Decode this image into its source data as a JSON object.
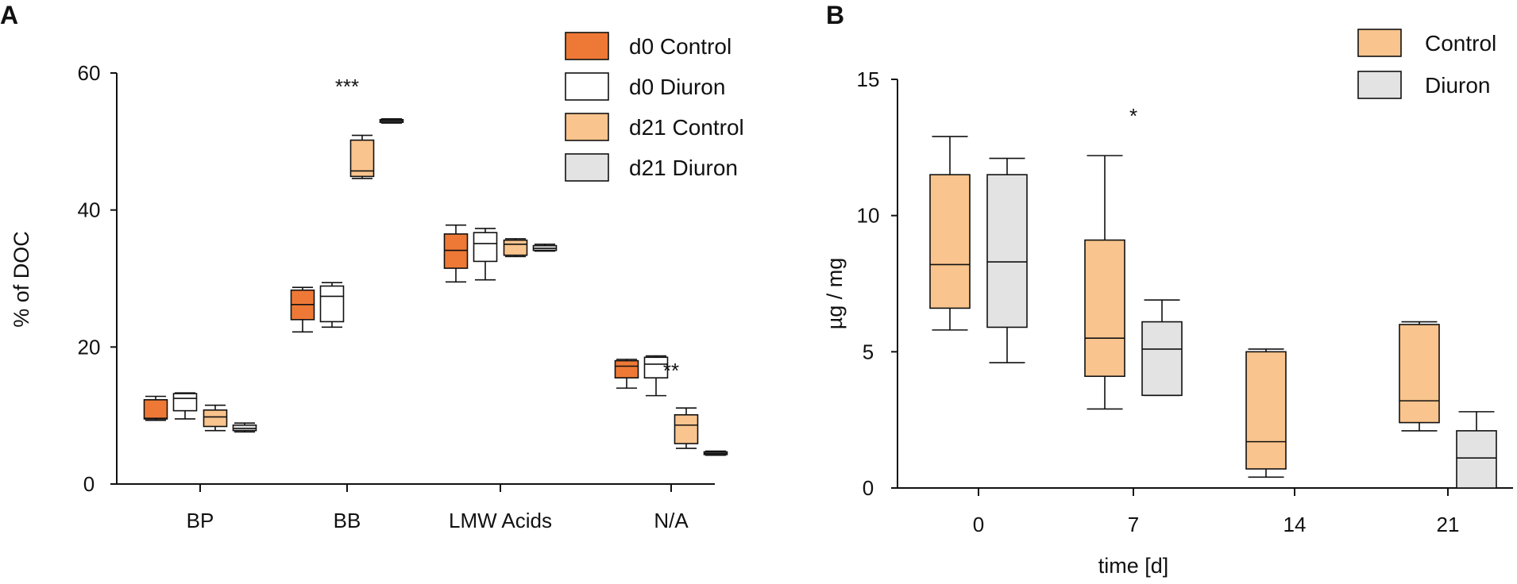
{
  "chart_data": [
    {
      "panel": "A",
      "type": "boxplot",
      "ylabel": "% of DOC",
      "xlabel": "",
      "ylim": [
        0,
        60
      ],
      "yticks": [
        0,
        20,
        40,
        60
      ],
      "categories": [
        "BP",
        "BB",
        "LMW Acids",
        "N/A"
      ],
      "legend_position": "top-right",
      "series": [
        {
          "name": "d0 Control",
          "color": "#ee7936",
          "boxes": [
            {
              "min": 9.3,
              "q1": 9.5,
              "median": 9.6,
              "q3": 12.3,
              "max": 12.8
            },
            {
              "min": 22.2,
              "q1": 24.0,
              "median": 26.2,
              "q3": 28.3,
              "max": 28.7
            },
            {
              "min": 29.5,
              "q1": 31.5,
              "median": 34.1,
              "q3": 36.5,
              "max": 37.8
            },
            {
              "min": 14.0,
              "q1": 15.5,
              "median": 17.2,
              "q3": 18.0,
              "max": 18.2
            }
          ]
        },
        {
          "name": "d0 Diuron",
          "color": "#ffffff",
          "boxes": [
            {
              "min": 9.5,
              "q1": 10.7,
              "median": 12.5,
              "q3": 13.2,
              "max": 13.3
            },
            {
              "min": 22.9,
              "q1": 23.7,
              "median": 27.4,
              "q3": 28.9,
              "max": 29.4
            },
            {
              "min": 29.8,
              "q1": 32.5,
              "median": 35.1,
              "q3": 36.7,
              "max": 37.3
            },
            {
              "min": 12.9,
              "q1": 15.5,
              "median": 17.5,
              "q3": 18.5,
              "max": 18.7
            }
          ]
        },
        {
          "name": "d21 Control",
          "color": "#f9c48d",
          "boxes": [
            {
              "min": 7.8,
              "q1": 8.4,
              "median": 9.8,
              "q3": 10.8,
              "max": 11.5
            },
            {
              "min": 44.6,
              "q1": 44.9,
              "median": 45.7,
              "q3": 50.2,
              "max": 50.9
            },
            {
              "min": 33.2,
              "q1": 33.4,
              "median": 35.0,
              "q3": 35.6,
              "max": 35.8
            },
            {
              "min": 5.2,
              "q1": 5.9,
              "median": 8.6,
              "q3": 10.1,
              "max": 11.1
            }
          ]
        },
        {
          "name": "d21 Diuron",
          "color": "#e3e3e3",
          "boxes": [
            {
              "min": 7.6,
              "q1": 7.8,
              "median": 8.1,
              "q3": 8.6,
              "max": 8.9
            },
            {
              "min": 52.7,
              "q1": 52.8,
              "median": 53.0,
              "q3": 53.2,
              "max": 53.3
            },
            {
              "min": 34.0,
              "q1": 34.1,
              "median": 34.4,
              "q3": 34.8,
              "max": 35.0
            },
            {
              "min": 4.2,
              "q1": 4.3,
              "median": 4.5,
              "q3": 4.7,
              "max": 4.8
            }
          ]
        }
      ],
      "annotations": [
        {
          "text": "***",
          "category": "BB",
          "y": 57.0
        },
        {
          "text": "**",
          "category": "N/A",
          "y": 15.5
        }
      ]
    },
    {
      "panel": "B",
      "type": "boxplot",
      "ylabel": "µg / mg",
      "xlabel": "time [d]",
      "ylim": [
        0,
        15
      ],
      "yticks": [
        0,
        5,
        10,
        15
      ],
      "categories": [
        "0",
        "7",
        "14",
        "21"
      ],
      "legend_position": "top-right",
      "series": [
        {
          "name": "Control",
          "color": "#f9c48d",
          "boxes": [
            {
              "min": 5.8,
              "q1": 6.6,
              "median": 8.2,
              "q3": 11.5,
              "max": 12.9
            },
            {
              "min": 2.9,
              "q1": 4.1,
              "median": 5.5,
              "q3": 9.1,
              "max": 12.2
            },
            {
              "min": 0.4,
              "q1": 0.7,
              "median": 1.7,
              "q3": 5.0,
              "max": 5.1
            },
            {
              "min": 2.1,
              "q1": 2.4,
              "median": 3.2,
              "q3": 6.0,
              "max": 6.1
            }
          ]
        },
        {
          "name": "Diuron",
          "color": "#e3e3e3",
          "boxes": [
            {
              "min": 4.6,
              "q1": 5.9,
              "median": 8.3,
              "q3": 11.5,
              "max": 12.1
            },
            {
              "min": 3.4,
              "q1": 3.4,
              "median": 5.1,
              "q3": 6.1,
              "max": 6.9
            },
            null,
            {
              "min": 0.0,
              "q1": 0.0,
              "median": 1.1,
              "q3": 2.1,
              "max": 2.8
            }
          ]
        }
      ],
      "annotations": [
        {
          "text": "*",
          "category": "7",
          "y": 13.4
        }
      ]
    }
  ]
}
